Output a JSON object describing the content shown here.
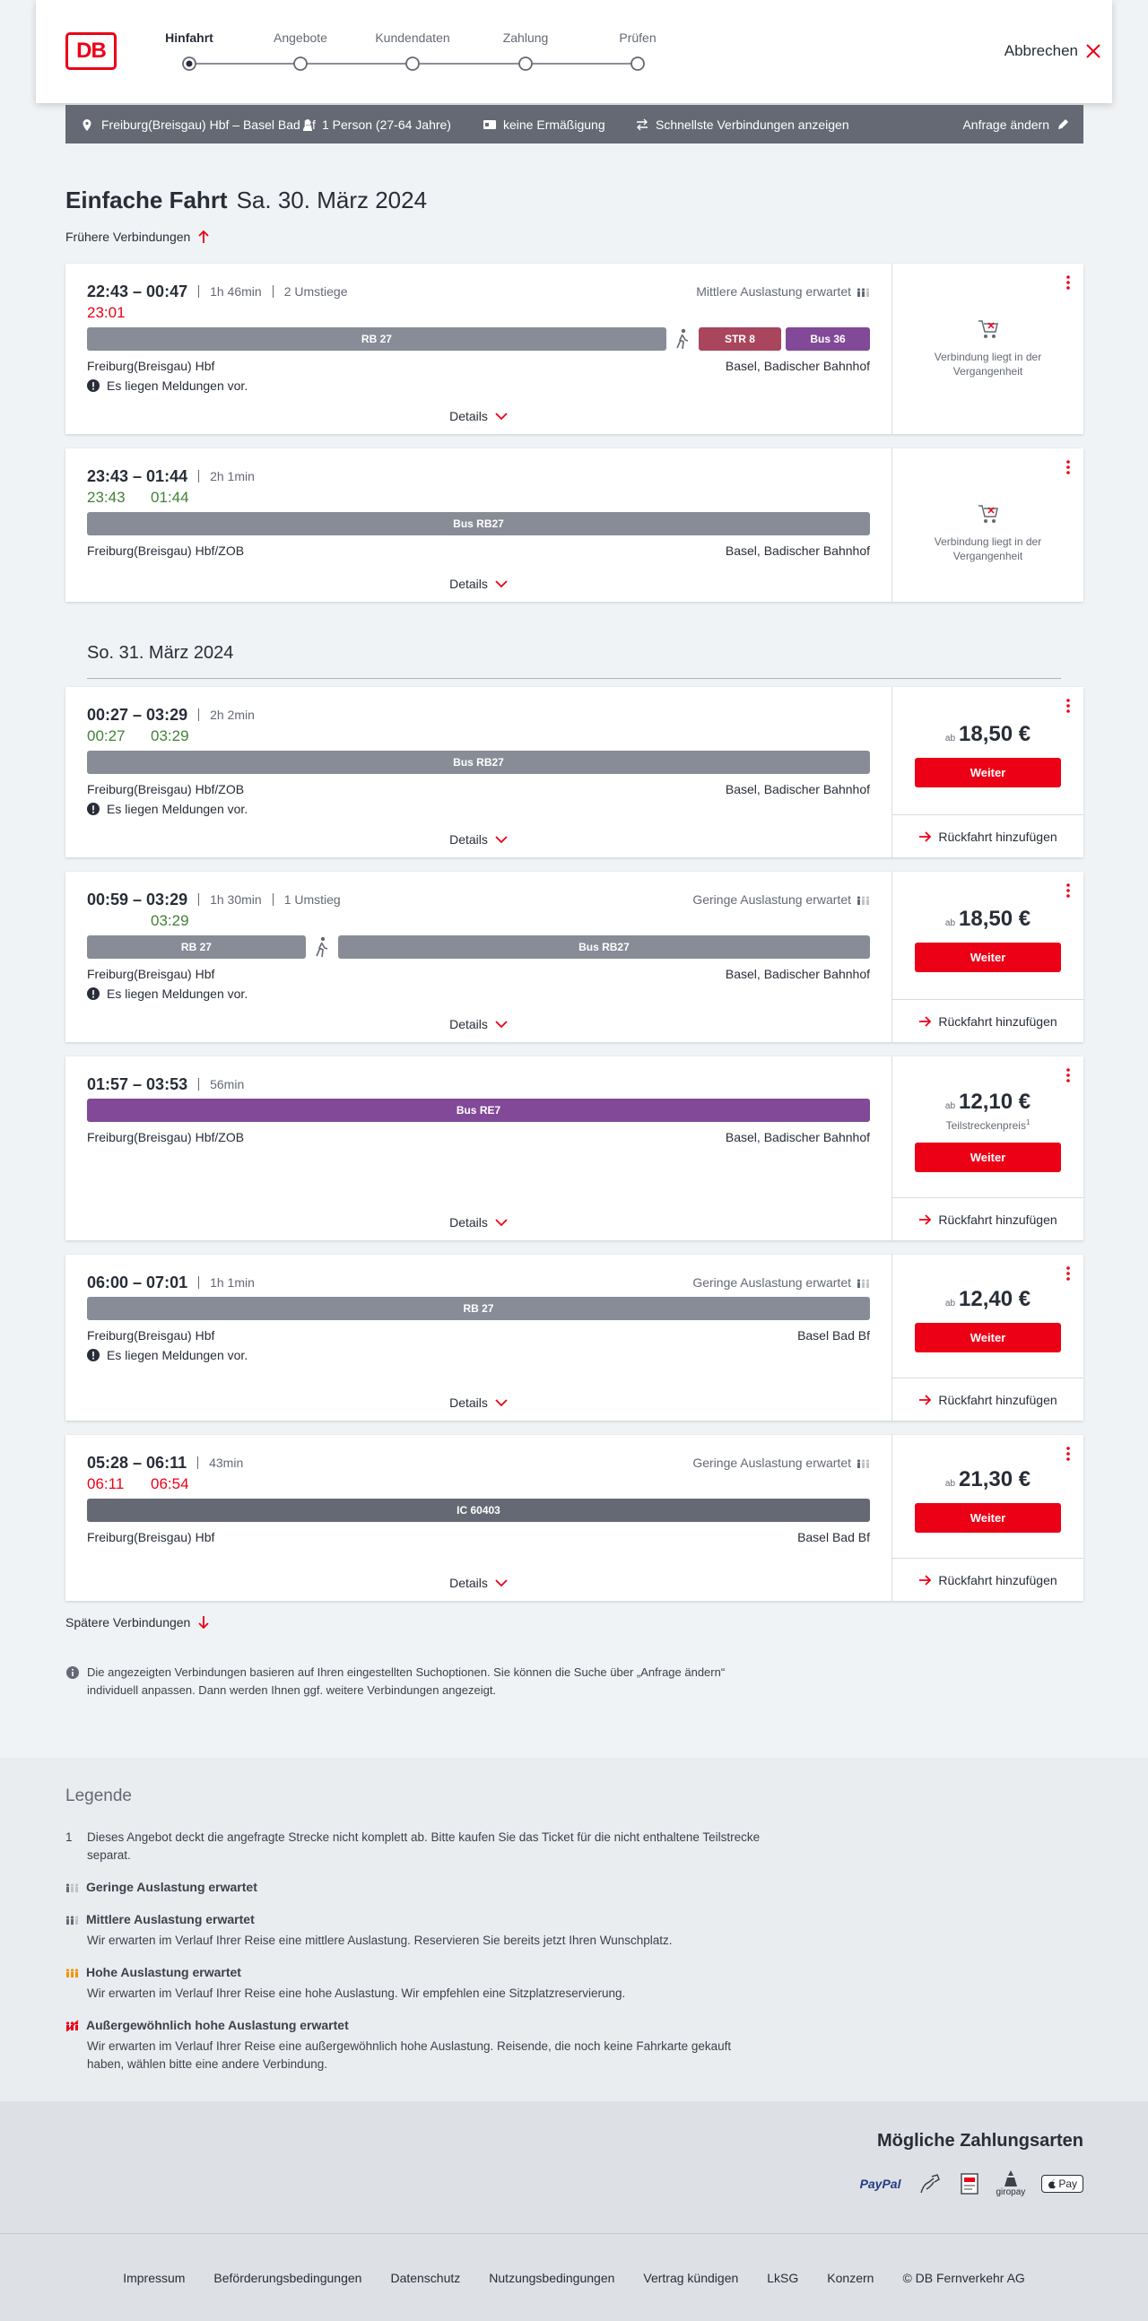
{
  "header": {
    "logo": "DB",
    "steps": [
      "Hinfahrt",
      "Angebote",
      "Kundendaten",
      "Zahlung",
      "Prüfen"
    ],
    "active_step": 0,
    "cancel": "Abbrechen"
  },
  "search": {
    "route": "Freiburg(Breisgau) Hbf – Basel Bad Bf",
    "passengers": "1 Person (27-64 Jahre)",
    "discount": "keine Ermäßigung",
    "option": "Schnellste Verbindungen anzeigen",
    "change": "Anfrage ändern"
  },
  "title": {
    "text": "Einfache Fahrt",
    "date": "Sa. 30. März 2024"
  },
  "earlier": "Frühere Verbindungen",
  "labels": {
    "details": "Details",
    "notice": "Es liegen Meldungen vor.",
    "past": "Verbindung liegt in der Vergangenheit",
    "from_price": "ab",
    "button": "Weiter",
    "return": "Rückfahrt hinzufügen"
  },
  "days": [
    {
      "connections": [
        {
          "time": "22:43 – 00:47",
          "duration": "1h 46min",
          "changes": "2 Umstiege",
          "load": "Mittlere Auslastung erwartet",
          "load_level": 2,
          "dep_rt": {
            "text": "23:01",
            "color": "#ec0016"
          },
          "legs": [
            {
              "label": "RB 27",
              "color": "#878c96"
            },
            {
              "walk": true
            },
            {
              "label": "STR 8",
              "color": "#a9455d"
            },
            {
              "label": "Bus 36",
              "color": "#814997"
            }
          ],
          "from": "Freiburg(Breisgau) Hbf",
          "to": "Basel, Badischer Bahnhof",
          "notice": true,
          "past": true
        },
        {
          "time": "23:43 – 01:44",
          "duration": "2h 1min",
          "dep_rt": {
            "text": "23:43",
            "color": "#408335"
          },
          "arr_rt": {
            "text": "01:44",
            "color": "#408335"
          },
          "legs": [
            {
              "label": "Bus RB27",
              "color": "#878c96"
            }
          ],
          "from": "Freiburg(Breisgau) Hbf/ZOB",
          "to": "Basel, Badischer Bahnhof",
          "past": true
        }
      ]
    },
    {
      "heading": "So. 31. März 2024",
      "connections": [
        {
          "time": "00:27 – 03:29",
          "duration": "2h 2min",
          "dep_rt": {
            "text": "00:27",
            "color": "#408335"
          },
          "arr_rt": {
            "text": "03:29",
            "color": "#408335"
          },
          "legs": [
            {
              "label": "Bus RB27",
              "color": "#878c96"
            }
          ],
          "from": "Freiburg(Breisgau) Hbf/ZOB",
          "to": "Basel, Badischer Bahnhof",
          "notice": true,
          "price": "18,50 €"
        },
        {
          "time": "00:59 – 03:29",
          "duration": "1h 30min",
          "changes": "1 Umstieg",
          "load": "Geringe Auslastung erwartet",
          "load_level": 1,
          "arr_rt": {
            "text": "03:29",
            "color": "#408335"
          },
          "legs": [
            {
              "label": "RB 27",
              "color": "#878c96"
            },
            {
              "walk": true
            },
            {
              "label": "Bus RB27",
              "color": "#878c96"
            }
          ],
          "from": "Freiburg(Breisgau) Hbf",
          "to": "Basel, Badischer Bahnhof",
          "notice": true,
          "price": "18,50 €"
        },
        {
          "time": "01:57 – 03:53",
          "duration": "56min",
          "legs": [
            {
              "label": "Bus RE7",
              "color": "#814997"
            }
          ],
          "from": "Freiburg(Breisgau) Hbf/ZOB",
          "to": "Basel, Badischer Bahnhof",
          "price": "12,10 €",
          "price_note": "Teilstreckenpreis",
          "price_note_ref": "1"
        },
        {
          "time": "06:00 – 07:01",
          "duration": "1h 1min",
          "load": "Geringe Auslastung erwartet",
          "load_level": 1,
          "legs": [
            {
              "label": "RB 27",
              "color": "#878c96"
            }
          ],
          "from": "Freiburg(Breisgau) Hbf",
          "to": "Basel Bad Bf",
          "notice": true,
          "price": "12,40 €"
        },
        {
          "time": "05:28 – 06:11",
          "duration": "43min",
          "load": "Geringe Auslastung erwartet",
          "load_level": 1,
          "dep_rt": {
            "text": "06:11",
            "color": "#ec0016"
          },
          "arr_rt": {
            "text": "06:54",
            "color": "#ec0016"
          },
          "legs": [
            {
              "label": "IC 60403",
              "color": "#646973"
            }
          ],
          "from": "Freiburg(Breisgau) Hbf",
          "to": "Basel Bad Bf",
          "price": "21,30 €"
        }
      ]
    }
  ],
  "later": "Spätere Verbindungen",
  "info": "Die angezeigten Verbindungen basieren auf Ihren eingestellten Suchoptionen. Sie können die Suche über „Anfrage ändern“ individuell anpassen. Dann werden Ihnen ggf. weitere Verbindungen angezeigt.",
  "legend": {
    "title": "Legende",
    "footnotes": [
      {
        "ref": "1",
        "text": "Dieses Angebot deckt die angefragte Strecke nicht komplett ab. Bitte kaufen Sie das Ticket für die nicht enthaltene Teilstrecke separat."
      }
    ],
    "items": [
      {
        "title": "Geringe Auslastung erwartet",
        "level": 1
      },
      {
        "title": "Mittlere Auslastung erwartet",
        "level": 2,
        "text": "Wir erwarten im Verlauf Ihrer Reise eine mittlere Auslastung. Reservieren Sie bereits jetzt Ihren Wunschplatz."
      },
      {
        "title": "Hohe Auslastung erwartet",
        "level": 3,
        "text": "Wir erwarten im Verlauf Ihrer Reise eine hohe Auslastung. Wir empfehlen eine Sitzplatzreservierung."
      },
      {
        "title": "Außergewöhnlich hohe Auslastung erwartet",
        "level": 4,
        "text": "Wir erwarten im Verlauf Ihrer Reise eine außergewöhnlich hohe Auslastung. Reisende, die noch keine Fahrkarte gekauft haben, wählen bitte eine andere Verbindung."
      }
    ]
  },
  "payment": {
    "title": "Mögliche Zahlungsarten",
    "paypal": "PayPal",
    "giropay": "giropay",
    "applepay": "Pay"
  },
  "footer": {
    "links": [
      "Impressum",
      "Beförderungsbedingungen",
      "Datenschutz",
      "Nutzungsbedingungen",
      "Vertrag kündigen",
      "LkSG",
      "Konzern",
      "© DB Fernverkehr AG"
    ]
  }
}
